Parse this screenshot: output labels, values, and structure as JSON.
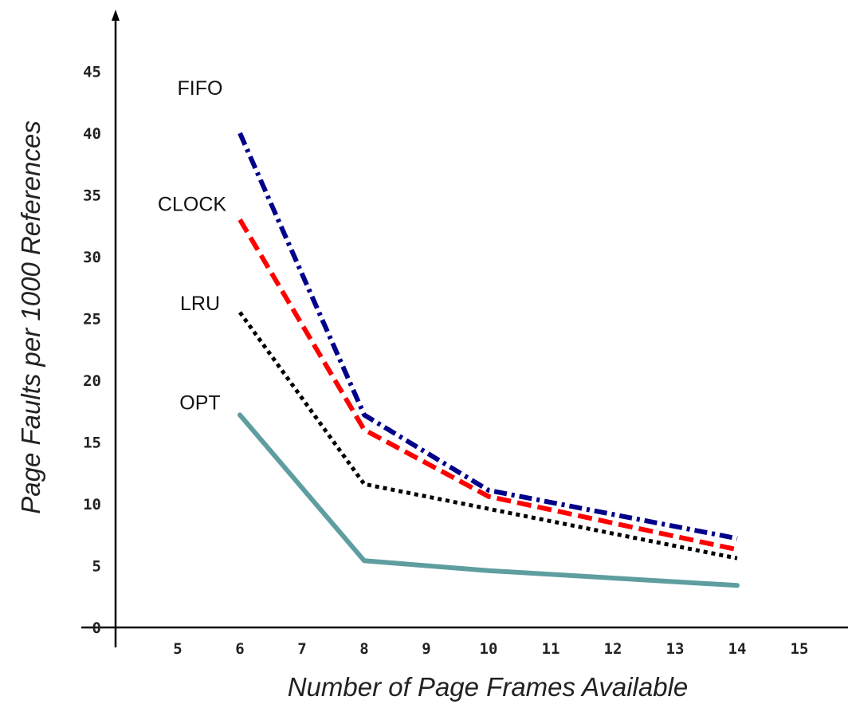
{
  "chart_data": {
    "type": "line",
    "title": "",
    "xlabel": "Number of Page Frames Available",
    "ylabel": "Page Faults per 1000 References",
    "xlim": [
      4,
      16
    ],
    "ylim": [
      0,
      48
    ],
    "xticks": [
      5,
      6,
      7,
      8,
      9,
      10,
      11,
      12,
      13,
      14,
      15
    ],
    "yticks": [
      0,
      5,
      10,
      15,
      20,
      25,
      30,
      35,
      40,
      45
    ],
    "grid": false,
    "legend": "labels beside each series start",
    "series": [
      {
        "name": "FIFO",
        "x": [
          6,
          8,
          10,
          14
        ],
        "y": [
          40,
          17.2,
          11.1,
          7.2
        ],
        "color": "#00008b",
        "style": "dash-dot"
      },
      {
        "name": "CLOCK",
        "x": [
          6,
          8,
          10,
          14
        ],
        "y": [
          33,
          16,
          10.6,
          6.3
        ],
        "color": "#ff0000",
        "style": "dashed"
      },
      {
        "name": "LRU",
        "x": [
          6,
          8,
          10,
          14
        ],
        "y": [
          25.5,
          11.6,
          9.6,
          5.6
        ],
        "color": "#000000",
        "style": "dotted"
      },
      {
        "name": "OPT",
        "x": [
          6,
          8,
          10,
          14
        ],
        "y": [
          17.2,
          5.4,
          4.6,
          3.4
        ],
        "color": "#5f9ea0",
        "style": "solid"
      }
    ]
  }
}
